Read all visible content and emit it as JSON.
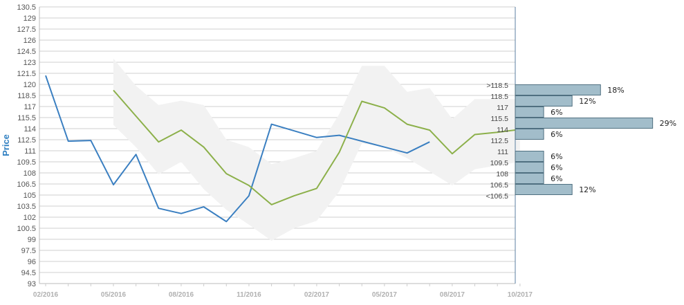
{
  "chart_data": {
    "type": "line",
    "ylabel": "Price",
    "ylim": [
      93,
      130.5
    ],
    "y_ticks": [
      "130.5",
      "129",
      "127.5",
      "126",
      "124.5",
      "123",
      "121.5",
      "120",
      "118.5",
      "117",
      "115.5",
      "114",
      "112.5",
      "111",
      "109.5",
      "108",
      "106.5",
      "105",
      "103.5",
      "102",
      "100.5",
      "99",
      "97.5",
      "96",
      "94.5",
      "93"
    ],
    "x_ticks": [
      {
        "label": "02/2016",
        "x": 0
      },
      {
        "label": "05/2016",
        "x": 3
      },
      {
        "label": "08/2016",
        "x": 6
      },
      {
        "label": "11/2016",
        "x": 9
      },
      {
        "label": "02/2017",
        "x": 12
      },
      {
        "label": "05/2017",
        "x": 15
      },
      {
        "label": "08/2017",
        "x": 18
      },
      {
        "label": "10/2017",
        "x": 21
      }
    ],
    "xlim": [
      0,
      21
    ],
    "grid": true,
    "series": [
      {
        "color": "#3a7fc1",
        "points": [
          [
            0,
            121.2
          ],
          [
            1,
            112.3
          ],
          [
            2,
            112.4
          ],
          [
            3,
            106.4
          ],
          [
            4,
            110.5
          ],
          [
            5,
            103.2
          ],
          [
            6,
            102.5
          ],
          [
            7,
            103.4
          ],
          [
            8,
            101.4
          ],
          [
            9,
            104.9
          ],
          [
            10,
            114.6
          ],
          [
            11,
            113.7
          ],
          [
            12,
            112.8
          ],
          [
            13,
            113.1
          ],
          [
            14,
            112.3
          ],
          [
            15,
            111.5
          ],
          [
            16,
            110.7
          ],
          [
            17,
            112.2
          ]
        ]
      },
      {
        "color": "#8cb04a",
        "points": [
          [
            3,
            119.2
          ],
          [
            4,
            115.7
          ],
          [
            5,
            112.2
          ],
          [
            6,
            113.8
          ],
          [
            7,
            111.5
          ],
          [
            8,
            107.9
          ],
          [
            9,
            106.3
          ],
          [
            10,
            103.7
          ],
          [
            11,
            104.9
          ],
          [
            12,
            105.9
          ],
          [
            13,
            110.8
          ],
          [
            14,
            117.7
          ],
          [
            15,
            116.8
          ],
          [
            16,
            114.6
          ],
          [
            17,
            113.8
          ],
          [
            18,
            110.6
          ],
          [
            19,
            113.2
          ],
          [
            20,
            113.5
          ],
          [
            21,
            113.9
          ]
        ]
      }
    ],
    "band": {
      "color": "#f2f2f2",
      "upper": [
        [
          3,
          123.5
        ],
        [
          4,
          119.8
        ],
        [
          5,
          117.2
        ],
        [
          6,
          117.8
        ],
        [
          7,
          117.2
        ],
        [
          8,
          112.5
        ],
        [
          9,
          111.5
        ],
        [
          10,
          109.2
        ],
        [
          11,
          110
        ],
        [
          12,
          111
        ],
        [
          13,
          116
        ],
        [
          14,
          122.5
        ],
        [
          15,
          122.5
        ],
        [
          16,
          119
        ],
        [
          17,
          119.5
        ],
        [
          18,
          115.3
        ],
        [
          19,
          118
        ],
        [
          20,
          118
        ],
        [
          21,
          118
        ]
      ],
      "lower": [
        [
          3,
          114.5
        ],
        [
          4,
          111.5
        ],
        [
          5,
          107.8
        ],
        [
          6,
          109.5
        ],
        [
          7,
          105.8
        ],
        [
          8,
          103
        ],
        [
          9,
          101
        ],
        [
          10,
          98.8
        ],
        [
          11,
          100.5
        ],
        [
          12,
          101.5
        ],
        [
          13,
          105.5
        ],
        [
          14,
          112
        ],
        [
          15,
          111.5
        ],
        [
          16,
          110
        ],
        [
          17,
          108.2
        ],
        [
          18,
          106.3
        ],
        [
          19,
          108.5
        ],
        [
          20,
          109
        ],
        [
          21,
          109.5
        ]
      ]
    },
    "histogram": {
      "color": "#a2bdca",
      "border": "#4f6f80",
      "bins": [
        {
          "label": ">118.5",
          "y0": 118.5,
          "y1": 120,
          "pct": 18,
          "pct_label": "18%"
        },
        {
          "label": "118.5",
          "y0": 117,
          "y1": 118.5,
          "pct": 12,
          "pct_label": "12%"
        },
        {
          "label": "117",
          "y0": 115.5,
          "y1": 117,
          "pct": 6,
          "pct_label": "6%"
        },
        {
          "label": "115.5",
          "y0": 114,
          "y1": 115.5,
          "pct": 29,
          "pct_label": "29%"
        },
        {
          "label": "114",
          "y0": 112.5,
          "y1": 114,
          "pct": 6,
          "pct_label": "6%"
        },
        {
          "label": "112.5",
          "y0": 111,
          "y1": 112.5,
          "pct": 0,
          "pct_label": ""
        },
        {
          "label": "111",
          "y0": 109.5,
          "y1": 111,
          "pct": 6,
          "pct_label": "6%"
        },
        {
          "label": "109.5",
          "y0": 108,
          "y1": 109.5,
          "pct": 6,
          "pct_label": "6%"
        },
        {
          "label": "108",
          "y0": 106.5,
          "y1": 108,
          "pct": 6,
          "pct_label": "6%"
        },
        {
          "label": "106.5",
          "y0": 105,
          "y1": 106.5,
          "pct": 12,
          "pct_label": "12%"
        },
        {
          "label": "<106.5",
          "y0": 103.5,
          "y1": 105,
          "pct": 0,
          "pct_label": ""
        }
      ]
    }
  }
}
